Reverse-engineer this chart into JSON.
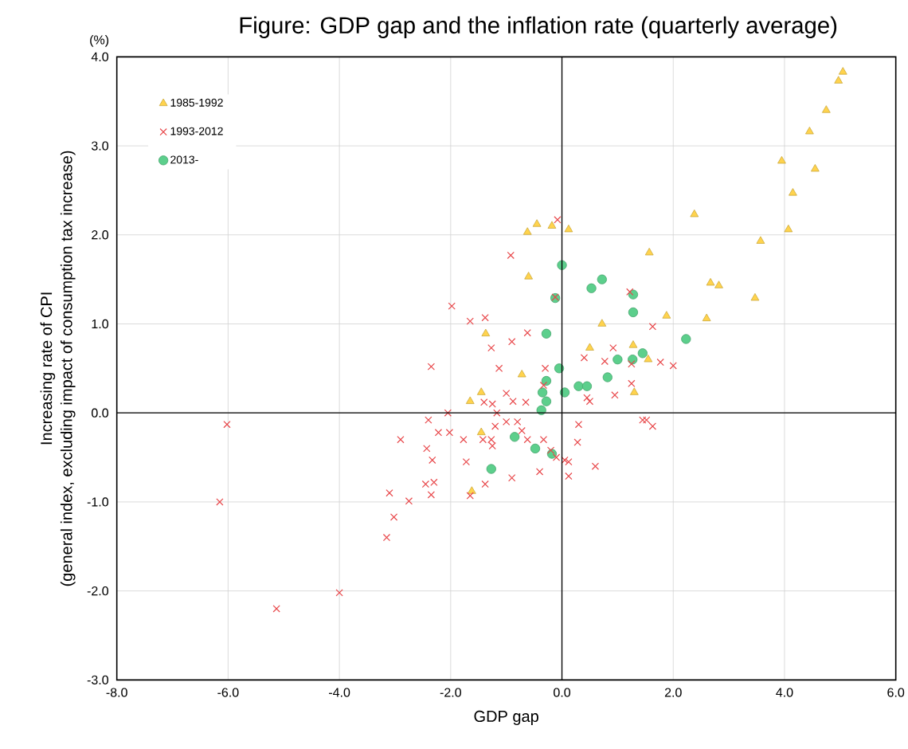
{
  "chart_data": {
    "type": "scatter",
    "title": "Figure: GDP gap and the inflation rate (quarterly average)",
    "xlabel": "GDP gap",
    "ylabel": [
      "Increasing rate of CPI",
      "(general index, excluding impact of consumption tax increase)"
    ],
    "annotations": [
      "(%)"
    ],
    "xlim": [
      -8,
      6
    ],
    "ylim": [
      -3,
      4
    ],
    "xticks": [
      {
        "value": -8,
        "label": "-8.0"
      },
      {
        "value": -6,
        "label": "-6.0"
      },
      {
        "value": -4,
        "label": "-4.0"
      },
      {
        "value": -2,
        "label": "-2.0"
      },
      {
        "value": 0,
        "label": "0.0"
      },
      {
        "value": 2,
        "label": "2.0"
      },
      {
        "value": 4,
        "label": "4.0"
      },
      {
        "value": 6,
        "label": "6.0"
      }
    ],
    "yticks": [
      {
        "value": -3,
        "label": "-3.0"
      },
      {
        "value": -2,
        "label": "-2.0"
      },
      {
        "value": -1,
        "label": "-1.0"
      },
      {
        "value": 0,
        "label": "0.0"
      },
      {
        "value": 1,
        "label": "1.0"
      },
      {
        "value": 2,
        "label": "2.0"
      },
      {
        "value": 3,
        "label": "3.0"
      },
      {
        "value": 4,
        "label": "4.0"
      }
    ],
    "grid": true,
    "legend": "top left",
    "series": [
      {
        "name": "1985-1992",
        "color": "#ffd34d",
        "marker": "triangle",
        "x": [
          5.05,
          4.97,
          4.75,
          4.45,
          3.95,
          4.55,
          4.15,
          2.38,
          4.07,
          3.57,
          1.57,
          2.67,
          2.82,
          3.47,
          1.88,
          2.6,
          0.72,
          1.28,
          0.5,
          1.55,
          1.3,
          -1.37,
          -0.72,
          -1.45,
          -1.65,
          -1.45,
          -1.62,
          -0.62,
          -0.45,
          -0.18,
          0.12,
          -0.6
        ],
        "values": [
          3.83,
          3.73,
          3.4,
          3.16,
          2.83,
          2.74,
          2.47,
          2.23,
          2.06,
          1.93,
          1.8,
          1.46,
          1.43,
          1.29,
          1.09,
          1.06,
          1.0,
          0.76,
          0.73,
          0.6,
          0.23,
          0.89,
          0.43,
          0.23,
          0.13,
          -0.22,
          -0.88,
          2.03,
          2.12,
          2.1,
          2.06,
          1.53
        ]
      },
      {
        "name": "1993-2012",
        "color": "#e8474a",
        "marker": "cross",
        "x": [
          -0.08,
          -0.92,
          -0.12,
          1.22,
          -1.98,
          -1.38,
          -1.65,
          -0.62,
          -0.9,
          -1.27,
          1.63,
          0.92,
          1.25,
          2.0,
          -2.35,
          -1.13,
          -0.3,
          0.4,
          0.77,
          1.77,
          1.25,
          -1.0,
          -1.4,
          -0.65,
          -0.33,
          0.45,
          0.5,
          0.95,
          -1.25,
          -0.88,
          -1.17,
          -2.05,
          -1.0,
          -1.2,
          -0.8,
          -0.72,
          -0.62,
          -1.42,
          -1.27,
          -1.77,
          -2.02,
          -2.22,
          -2.4,
          -2.43,
          -2.9,
          -2.33,
          -1.72,
          -1.25,
          -0.33,
          0.3,
          0.28,
          0.05,
          0.12,
          0.12,
          0.6,
          1.45,
          1.52,
          1.63,
          -0.9,
          -0.4,
          -1.38,
          -1.65,
          -2.3,
          -2.45,
          -2.35,
          -3.1,
          -2.75,
          -3.02,
          -3.15,
          -6.02,
          -6.15,
          -4.0,
          -5.13,
          -0.2,
          -0.1
        ],
        "values": [
          2.17,
          1.77,
          1.3,
          1.36,
          1.2,
          1.07,
          1.03,
          0.9,
          0.8,
          0.73,
          0.97,
          0.73,
          0.55,
          0.53,
          0.52,
          0.5,
          0.5,
          0.62,
          0.58,
          0.57,
          0.33,
          0.22,
          0.12,
          0.12,
          0.31,
          0.17,
          0.13,
          0.2,
          0.1,
          0.13,
          0.0,
          0.0,
          -0.1,
          -0.15,
          -0.1,
          -0.2,
          -0.3,
          -0.3,
          -0.3,
          -0.3,
          -0.22,
          -0.22,
          -0.08,
          -0.4,
          -0.3,
          -0.53,
          -0.55,
          -0.37,
          -0.3,
          -0.13,
          -0.33,
          -0.53,
          -0.55,
          -0.71,
          -0.6,
          -0.08,
          -0.08,
          -0.15,
          -0.73,
          -0.66,
          -0.8,
          -0.93,
          -0.78,
          -0.8,
          -0.92,
          -0.9,
          -0.99,
          -1.17,
          -1.4,
          -0.13,
          -1.0,
          -2.02,
          -2.2,
          -0.42,
          -0.5
        ]
      },
      {
        "name": "2013-",
        "color": "#5ccf8c",
        "marker": "circle",
        "x": [
          0.0,
          0.72,
          0.53,
          1.28,
          -0.12,
          1.28,
          -0.28,
          2.23,
          1.45,
          1.0,
          1.27,
          -0.05,
          0.82,
          -0.28,
          0.3,
          0.45,
          -0.35,
          0.05,
          -0.28,
          -0.37,
          -0.85,
          -0.48,
          -0.18,
          -1.27
        ],
        "values": [
          1.66,
          1.5,
          1.4,
          1.33,
          1.29,
          1.13,
          0.89,
          0.83,
          0.67,
          0.6,
          0.6,
          0.5,
          0.4,
          0.36,
          0.3,
          0.3,
          0.23,
          0.23,
          0.13,
          0.03,
          -0.27,
          -0.4,
          -0.46,
          -0.63
        ]
      }
    ]
  }
}
